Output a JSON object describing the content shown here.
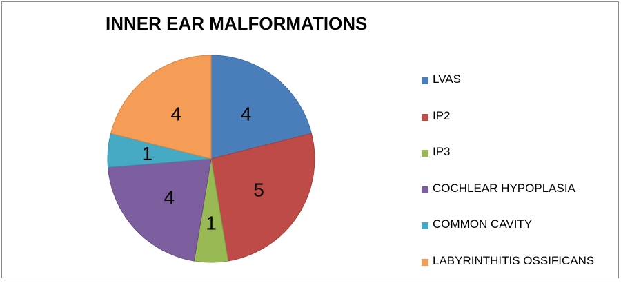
{
  "chart_data": {
    "type": "pie",
    "title": "INNER EAR MALFORMATIONS",
    "categories": [
      "LVAS",
      "IP2",
      "IP3",
      "COCHLEAR HYPOPLASIA",
      "COMMON CAVITY",
      "LABYRINTHITIS OSSIFICANS"
    ],
    "values": [
      4,
      5,
      1,
      4,
      1,
      4
    ],
    "colors": [
      "#4a7ebb",
      "#be4b48",
      "#98b954",
      "#7d5fa0",
      "#46aac5",
      "#f59d56"
    ],
    "data_labels_shown": true,
    "start_angle": "12 o'clock",
    "direction": "clockwise",
    "legend_position": "right"
  }
}
